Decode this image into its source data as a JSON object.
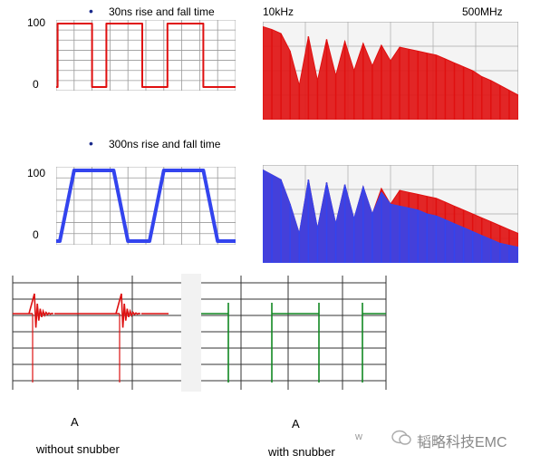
{
  "labels": {
    "title_top": "30ns rise and fall time",
    "freq_low": "10kHz",
    "freq_high": "500MHz",
    "title_mid": "300ns rise and fall time",
    "bullet": "•",
    "y100": "100",
    "y0": "0",
    "marker_left": "A",
    "marker_right": "A",
    "caption_left": "without snubber",
    "caption_right": "with snubber",
    "stray_w": "w",
    "watermark": "韬略科技EMC"
  },
  "colors": {
    "fast": "#e01010",
    "slow": "#3344ee",
    "without_snubber": "#dd1111",
    "with_snubber": "#118822",
    "grid": "#888888",
    "title_text": "#1a2a8c"
  },
  "chart_data": [
    {
      "type": "line",
      "panel": "time-domain-fast",
      "title": "30ns rise and fall time",
      "y_ticks": [
        "100",
        "0"
      ],
      "ylim": [
        0,
        100
      ],
      "series": [
        {
          "x": [
            0,
            0.02,
            0.02,
            0.5,
            0.5,
            0.7,
            0.7,
            1.2,
            1.2,
            1.55,
            1.55,
            2.05,
            2.05,
            2.5
          ],
          "y": [
            0,
            0,
            100,
            100,
            0,
            0,
            100,
            100,
            0,
            0,
            100,
            100,
            0,
            0
          ]
        }
      ]
    },
    {
      "type": "line",
      "panel": "time-domain-slow",
      "title": "300ns rise and fall time",
      "y_ticks": [
        "100",
        "0"
      ],
      "ylim": [
        0,
        100
      ],
      "series": [
        {
          "x": [
            0,
            0.05,
            0.25,
            0.8,
            1.0,
            1.3,
            1.5,
            2.05,
            2.25,
            2.5
          ],
          "y": [
            0,
            0,
            100,
            100,
            0,
            0,
            100,
            100,
            0,
            0
          ]
        }
      ]
    },
    {
      "type": "area",
      "panel": "spectrum-fast",
      "x_range_labels": [
        "10kHz",
        "500MHz"
      ],
      "series": [
        {
          "envelope": [
            95,
            92,
            88,
            70,
            35,
            85,
            40,
            82,
            45,
            80,
            50,
            78,
            55,
            76,
            60,
            74,
            72,
            70,
            68,
            66,
            62,
            58,
            54,
            50,
            44,
            40,
            35,
            30,
            25
          ]
        }
      ]
    },
    {
      "type": "area",
      "panel": "spectrum-slow",
      "series": [
        {
          "envelope": [
            95,
            90,
            85,
            60,
            30,
            85,
            35,
            82,
            40,
            80,
            45,
            78,
            50,
            76,
            60,
            74,
            72,
            70,
            68,
            66,
            62,
            58,
            54,
            50,
            46,
            42,
            38,
            34,
            30
          ]
        },
        {
          "envelope": [
            95,
            90,
            85,
            60,
            30,
            85,
            35,
            82,
            40,
            80,
            45,
            78,
            50,
            72,
            60,
            58,
            56,
            54,
            50,
            48,
            44,
            40,
            36,
            32,
            28,
            24,
            20,
            18,
            16
          ]
        }
      ]
    },
    {
      "type": "line",
      "panel": "ringing-comparison",
      "series": [
        {
          "name": "without snubber",
          "edges": 2
        },
        {
          "name": "with snubber",
          "edges": 4
        }
      ]
    }
  ]
}
